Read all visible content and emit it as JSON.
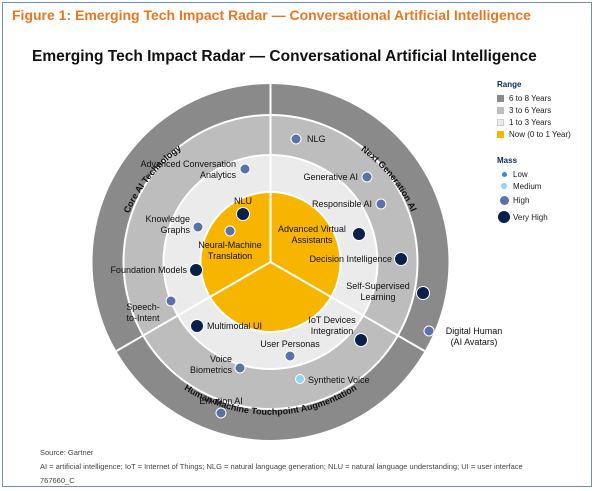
{
  "figure_title": "Figure 1: Emerging Tech Impact Radar — Conversational Artificial Intelligence",
  "title": "Emerging Tech Impact Radar — Conversational Artificial Intelligence",
  "legend": {
    "range_header": "Range",
    "ranges": [
      {
        "label": "6 to 8 Years",
        "color": "#8a8a8a"
      },
      {
        "label": "3 to 6 Years",
        "color": "#bdbdbd"
      },
      {
        "label": "1 to 3 Years",
        "color": "#ebebeb"
      },
      {
        "label": "Now (0 to 1 Year)",
        "color": "#f7b500"
      }
    ],
    "mass_header": "Mass",
    "masses": [
      {
        "label": "Low",
        "color": "#2a8fd6",
        "size": "low"
      },
      {
        "label": "Medium",
        "color": "#8fd6f5",
        "size": "medium"
      },
      {
        "label": "High",
        "color": "#5a72a8",
        "size": "high"
      },
      {
        "label": "Very High",
        "color": "#0b1f4d",
        "size": "very-high"
      }
    ]
  },
  "segments": {
    "core_ai": "Core AI Technology",
    "next_gen": "Next Generation AI",
    "hmta": "Human-Machine Touchpoint Augmentation"
  },
  "items": {
    "nlg": "NLG",
    "aca1": "Advanced Conversation",
    "aca2": "Analytics",
    "genai": "Generative AI",
    "respai": "Responsible AI",
    "kg1": "Knowledge",
    "kg2": "Graphs",
    "nlu": "NLU",
    "nmt1": "Neural-Machine",
    "nmt2": "Translation",
    "ava1": "Advanced Virtual",
    "ava2": "Assistants",
    "di": "Decision Intelligence",
    "fm": "Foundation Models",
    "ssl1": "Self-Supervised",
    "ssl2": "Learning",
    "sti1": "Speech-",
    "sti2": "to-Intent",
    "mmui": "Multimodal UI",
    "iot1": "IoT Devices",
    "iot2": "Integration",
    "dh1": "Digital Human",
    "dh2": "(AI Avatars)",
    "up": "User Personas",
    "vb1": "Voice",
    "vb2": "Biometrics",
    "sv": "Synthetic Voice",
    "eai": "Emotion AI"
  },
  "footer": {
    "source": "Source: Gartner",
    "abbrev": "AI = artificial intelligence; IoT = Internet of Things; NLG = natural language generation; NLU = natural language understanding; UI = user interface",
    "id": "767660_C"
  }
}
